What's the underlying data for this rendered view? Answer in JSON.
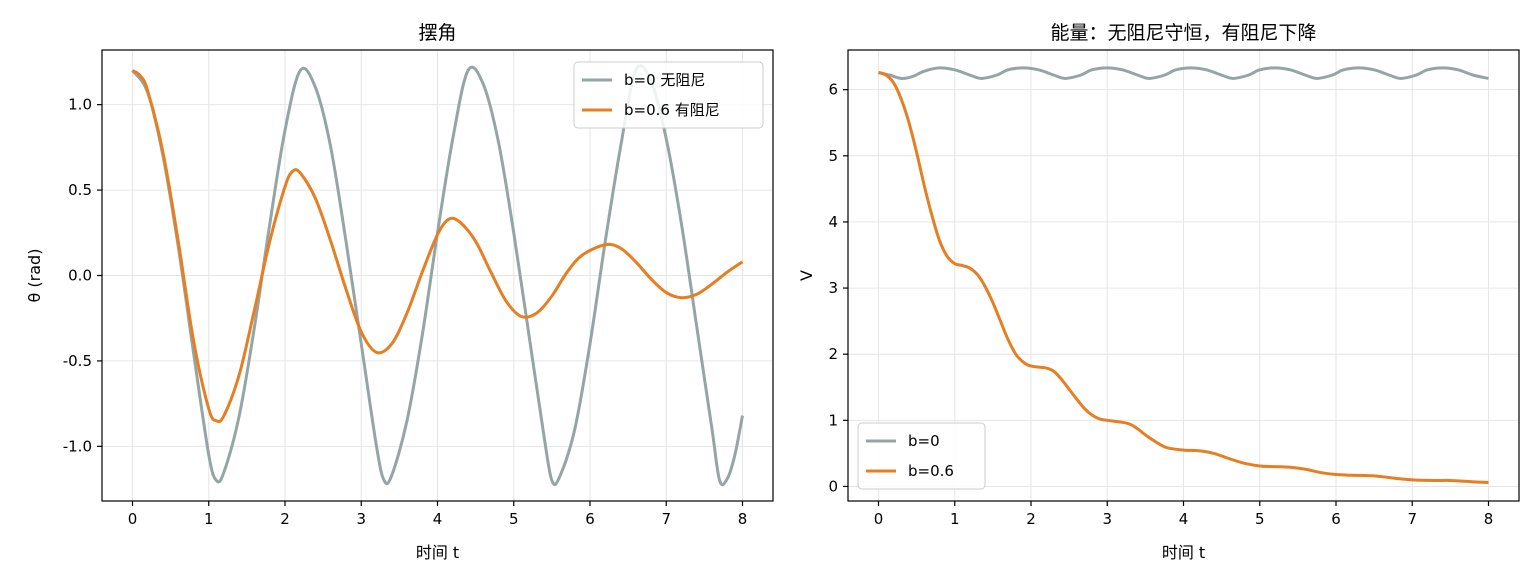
{
  "colors": {
    "undamped": "#95a5a6",
    "damped": "#e67e22",
    "grid": "#e6e6e6",
    "axes": "#000000"
  },
  "chart_data": [
    {
      "type": "line",
      "title": "摆角",
      "xlabel": "时间 t",
      "ylabel": "θ (rad)",
      "xlim": [
        -0.4,
        8.4
      ],
      "ylim": [
        -1.32,
        1.32
      ],
      "xticks": [
        0,
        1,
        2,
        3,
        4,
        5,
        6,
        7,
        8
      ],
      "xtick_labels": [
        "0",
        "1",
        "2",
        "3",
        "4",
        "5",
        "6",
        "7",
        "8"
      ],
      "yticks": [
        -1.0,
        -0.5,
        0.0,
        0.5,
        1.0
      ],
      "ytick_labels": [
        "-1.0",
        "-0.5",
        "0.0",
        "0.5",
        "1.0"
      ],
      "grid": true,
      "legend": "top-right",
      "series": [
        {
          "name": "b=0 无阻尼",
          "color_key": "undamped",
          "points": [
            [
              0,
              1.2
            ],
            [
              0.2,
              1.07
            ],
            [
              0.4,
              0.7
            ],
            [
              0.6,
              0.17
            ],
            [
              0.8,
              -0.45
            ],
            [
              1.0,
              -1.05
            ],
            [
              1.1,
              -1.2
            ],
            [
              1.2,
              -1.15
            ],
            [
              1.4,
              -0.82
            ],
            [
              1.6,
              -0.3
            ],
            [
              1.8,
              0.3
            ],
            [
              2.0,
              0.85
            ],
            [
              2.2,
              1.2
            ],
            [
              2.4,
              1.1
            ],
            [
              2.6,
              0.75
            ],
            [
              2.8,
              0.2
            ],
            [
              3.0,
              -0.4
            ],
            [
              3.2,
              -1.0
            ],
            [
              3.3,
              -1.2
            ],
            [
              3.4,
              -1.17
            ],
            [
              3.6,
              -0.85
            ],
            [
              3.8,
              -0.35
            ],
            [
              4.0,
              0.25
            ],
            [
              4.2,
              0.8
            ],
            [
              4.4,
              1.2
            ],
            [
              4.6,
              1.12
            ],
            [
              4.8,
              0.78
            ],
            [
              5.0,
              0.25
            ],
            [
              5.2,
              -0.35
            ],
            [
              5.4,
              -0.95
            ],
            [
              5.5,
              -1.2
            ],
            [
              5.6,
              -1.18
            ],
            [
              5.8,
              -0.9
            ],
            [
              6.0,
              -0.4
            ],
            [
              6.2,
              0.2
            ],
            [
              6.4,
              0.75
            ],
            [
              6.6,
              1.2
            ],
            [
              6.8,
              1.14
            ],
            [
              7.0,
              0.8
            ],
            [
              7.2,
              0.3
            ],
            [
              7.4,
              -0.3
            ],
            [
              7.6,
              -0.9
            ],
            [
              7.7,
              -1.2
            ],
            [
              7.8,
              -1.19
            ],
            [
              7.9,
              -1.05
            ],
            [
              8.0,
              -0.82
            ]
          ]
        },
        {
          "name": "b=0.6 有阻尼",
          "color_key": "damped",
          "points": [
            [
              0,
              1.2
            ],
            [
              0.1,
              1.17
            ],
            [
              0.2,
              1.08
            ],
            [
              0.4,
              0.72
            ],
            [
              0.6,
              0.2
            ],
            [
              0.8,
              -0.38
            ],
            [
              1.0,
              -0.78
            ],
            [
              1.1,
              -0.85
            ],
            [
              1.2,
              -0.82
            ],
            [
              1.4,
              -0.58
            ],
            [
              1.6,
              -0.2
            ],
            [
              1.8,
              0.2
            ],
            [
              2.0,
              0.52
            ],
            [
              2.1,
              0.61
            ],
            [
              2.2,
              0.6
            ],
            [
              2.4,
              0.45
            ],
            [
              2.6,
              0.2
            ],
            [
              2.8,
              -0.08
            ],
            [
              3.0,
              -0.33
            ],
            [
              3.2,
              -0.45
            ],
            [
              3.4,
              -0.4
            ],
            [
              3.6,
              -0.22
            ],
            [
              3.8,
              0.02
            ],
            [
              4.0,
              0.24
            ],
            [
              4.15,
              0.33
            ],
            [
              4.3,
              0.31
            ],
            [
              4.5,
              0.2
            ],
            [
              4.7,
              0.02
            ],
            [
              4.9,
              -0.15
            ],
            [
              5.1,
              -0.24
            ],
            [
              5.3,
              -0.22
            ],
            [
              5.5,
              -0.12
            ],
            [
              5.7,
              0.02
            ],
            [
              5.9,
              0.12
            ],
            [
              6.2,
              0.18
            ],
            [
              6.4,
              0.16
            ],
            [
              6.6,
              0.08
            ],
            [
              6.8,
              -0.02
            ],
            [
              7.0,
              -0.1
            ],
            [
              7.2,
              -0.13
            ],
            [
              7.4,
              -0.11
            ],
            [
              7.6,
              -0.05
            ],
            [
              7.8,
              0.02
            ],
            [
              8.0,
              0.08
            ]
          ]
        }
      ]
    },
    {
      "type": "line",
      "title": "能量：无阻尼守恒，有阻尼下降",
      "xlabel": "时间 t",
      "ylabel": "V",
      "xlim": [
        -0.4,
        8.4
      ],
      "ylim": [
        -0.22,
        6.6
      ],
      "xticks": [
        0,
        1,
        2,
        3,
        4,
        5,
        6,
        7,
        8
      ],
      "xtick_labels": [
        "0",
        "1",
        "2",
        "3",
        "4",
        "5",
        "6",
        "7",
        "8"
      ],
      "yticks": [
        0,
        1,
        2,
        3,
        4,
        5,
        6
      ],
      "ytick_labels": [
        "0",
        "1",
        "2",
        "3",
        "4",
        "5",
        "6"
      ],
      "grid": true,
      "legend": "bottom-left",
      "series": [
        {
          "name": "b=0",
          "color_key": "undamped",
          "points": [
            [
              0,
              6.26
            ],
            [
              0.15,
              6.22
            ],
            [
              0.3,
              6.17
            ],
            [
              0.45,
              6.2
            ],
            [
              0.6,
              6.28
            ],
            [
              0.8,
              6.33
            ],
            [
              1.0,
              6.3
            ],
            [
              1.2,
              6.22
            ],
            [
              1.35,
              6.17
            ],
            [
              1.55,
              6.22
            ],
            [
              1.7,
              6.3
            ],
            [
              1.9,
              6.33
            ],
            [
              2.1,
              6.3
            ],
            [
              2.3,
              6.22
            ],
            [
              2.45,
              6.17
            ],
            [
              2.65,
              6.22
            ],
            [
              2.8,
              6.3
            ],
            [
              3.0,
              6.33
            ],
            [
              3.2,
              6.3
            ],
            [
              3.4,
              6.22
            ],
            [
              3.55,
              6.17
            ],
            [
              3.75,
              6.22
            ],
            [
              3.9,
              6.3
            ],
            [
              4.1,
              6.33
            ],
            [
              4.3,
              6.3
            ],
            [
              4.5,
              6.22
            ],
            [
              4.65,
              6.17
            ],
            [
              4.85,
              6.22
            ],
            [
              5.0,
              6.3
            ],
            [
              5.2,
              6.33
            ],
            [
              5.4,
              6.3
            ],
            [
              5.6,
              6.22
            ],
            [
              5.75,
              6.17
            ],
            [
              5.95,
              6.22
            ],
            [
              6.1,
              6.3
            ],
            [
              6.3,
              6.33
            ],
            [
              6.5,
              6.3
            ],
            [
              6.7,
              6.22
            ],
            [
              6.85,
              6.17
            ],
            [
              7.05,
              6.22
            ],
            [
              7.2,
              6.3
            ],
            [
              7.4,
              6.33
            ],
            [
              7.6,
              6.3
            ],
            [
              7.8,
              6.22
            ],
            [
              8.0,
              6.17
            ]
          ]
        },
        {
          "name": "b=0.6",
          "color_key": "damped",
          "points": [
            [
              0,
              6.26
            ],
            [
              0.1,
              6.22
            ],
            [
              0.2,
              6.1
            ],
            [
              0.3,
              5.85
            ],
            [
              0.4,
              5.5
            ],
            [
              0.5,
              5.05
            ],
            [
              0.6,
              4.55
            ],
            [
              0.7,
              4.1
            ],
            [
              0.8,
              3.72
            ],
            [
              0.9,
              3.48
            ],
            [
              1.0,
              3.37
            ],
            [
              1.1,
              3.34
            ],
            [
              1.2,
              3.3
            ],
            [
              1.3,
              3.2
            ],
            [
              1.4,
              3.02
            ],
            [
              1.5,
              2.78
            ],
            [
              1.6,
              2.5
            ],
            [
              1.7,
              2.22
            ],
            [
              1.8,
              2.0
            ],
            [
              1.9,
              1.88
            ],
            [
              2.0,
              1.82
            ],
            [
              2.2,
              1.79
            ],
            [
              2.3,
              1.74
            ],
            [
              2.4,
              1.62
            ],
            [
              2.5,
              1.47
            ],
            [
              2.6,
              1.32
            ],
            [
              2.7,
              1.18
            ],
            [
              2.8,
              1.08
            ],
            [
              2.9,
              1.02
            ],
            [
              3.0,
              1.0
            ],
            [
              3.2,
              0.97
            ],
            [
              3.3,
              0.94
            ],
            [
              3.4,
              0.87
            ],
            [
              3.5,
              0.78
            ],
            [
              3.6,
              0.7
            ],
            [
              3.7,
              0.63
            ],
            [
              3.8,
              0.58
            ],
            [
              4.0,
              0.55
            ],
            [
              4.2,
              0.54
            ],
            [
              4.4,
              0.5
            ],
            [
              4.6,
              0.42
            ],
            [
              4.8,
              0.35
            ],
            [
              5.0,
              0.31
            ],
            [
              5.2,
              0.3
            ],
            [
              5.4,
              0.29
            ],
            [
              5.6,
              0.26
            ],
            [
              5.8,
              0.21
            ],
            [
              6.0,
              0.18
            ],
            [
              6.2,
              0.17
            ],
            [
              6.5,
              0.16
            ],
            [
              6.8,
              0.12
            ],
            [
              7.0,
              0.1
            ],
            [
              7.3,
              0.09
            ],
            [
              7.5,
              0.09
            ],
            [
              7.8,
              0.07
            ],
            [
              8.0,
              0.06
            ]
          ]
        }
      ]
    }
  ]
}
